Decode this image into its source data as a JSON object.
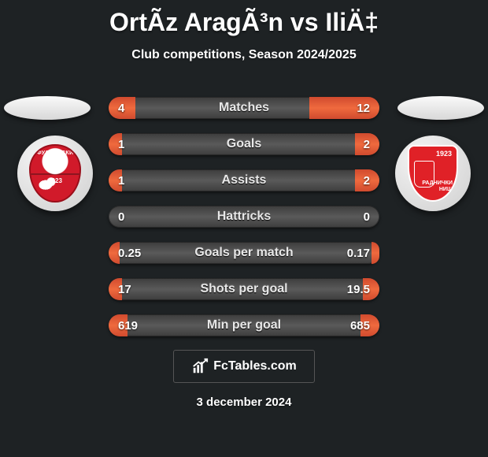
{
  "title": "OrtÃz AragÃ³n vs IliÄ‡",
  "subtitle": "Club competitions, Season 2024/2025",
  "date": "3 december 2024",
  "logo_text": "FcTables.com",
  "colors": {
    "background": "#1e2224",
    "bar_base_dark": "#3c3c3c",
    "bar_base_light": "#5a5a5a",
    "bar_fill_a": "#d04a2e",
    "bar_fill_b": "#ef6a3e",
    "crest_left": "#d11a2a",
    "crest_right": "#e02127",
    "text": "#ffffff"
  },
  "crest_left": {
    "top_text": "ФУДБАЛСКИ КЛУБ",
    "name": "раднички",
    "year": "1923"
  },
  "crest_right": {
    "year": "1923",
    "name": "РАДНИЧКИ\nНИШ"
  },
  "bars": [
    {
      "label": "Matches",
      "left": "4",
      "right": "12",
      "lw": 0.1,
      "rw": 0.26
    },
    {
      "label": "Goals",
      "left": "1",
      "right": "2",
      "lw": 0.05,
      "rw": 0.09
    },
    {
      "label": "Assists",
      "left": "1",
      "right": "2",
      "lw": 0.05,
      "rw": 0.09
    },
    {
      "label": "Hattricks",
      "left": "0",
      "right": "0",
      "lw": 0.0,
      "rw": 0.0
    },
    {
      "label": "Goals per match",
      "left": "0.25",
      "right": "0.17",
      "lw": 0.04,
      "rw": 0.03
    },
    {
      "label": "Shots per goal",
      "left": "17",
      "right": "19.5",
      "lw": 0.05,
      "rw": 0.06
    },
    {
      "label": "Min per goal",
      "left": "619",
      "right": "685",
      "lw": 0.07,
      "rw": 0.07
    }
  ]
}
